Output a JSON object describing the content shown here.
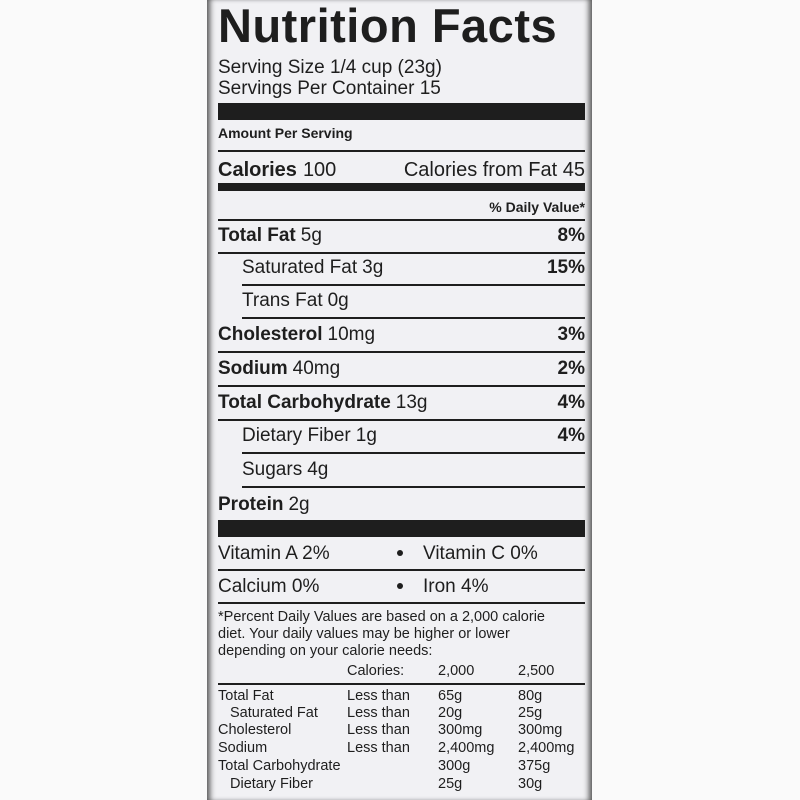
{
  "title": "Nutrition Facts",
  "serving_size": "Serving Size 1/4 cup (23g)",
  "servings_per_container": "Servings Per Container 15",
  "amount_per_serving": "Amount Per Serving",
  "calories": {
    "label": "Calories",
    "value": "100",
    "from_fat": "Calories from Fat 45"
  },
  "daily_value_header": "% Daily Value*",
  "nutrients": [
    {
      "name": "Total Fat",
      "amount": "5g",
      "dv": "8%"
    },
    {
      "name": "Saturated Fat",
      "amount": "3g",
      "dv": "15%"
    },
    {
      "name": "Trans Fat",
      "amount": "0g"
    },
    {
      "name": "Cholesterol",
      "amount": "10mg",
      "dv": "3%"
    },
    {
      "name": "Sodium",
      "amount": "40mg",
      "dv": "2%"
    },
    {
      "name": "Total Carbohydrate",
      "amount": "13g",
      "dv": "4%"
    },
    {
      "name": "Dietary Fiber",
      "amount": "1g",
      "dv": "4%"
    },
    {
      "name": "Sugars",
      "amount": "4g"
    },
    {
      "name": "Protein",
      "amount": "2g"
    }
  ],
  "vitamins": [
    [
      "Vitamin A 2%",
      "Vitamin C 0%"
    ],
    [
      "Calcium 0%",
      "Iron 4%"
    ]
  ],
  "footnote": [
    "*Percent Daily Values are based on a 2,000 calorie",
    "diet. Your daily values may be higher or lower",
    "depending on your calorie needs:"
  ],
  "reference_table": {
    "header": [
      "Calories:",
      "2,000",
      "2,500"
    ],
    "rows": [
      [
        "Total Fat",
        "Less than",
        "65g",
        "80g"
      ],
      [
        "Saturated Fat",
        "Less than",
        "20g",
        "25g"
      ],
      [
        "Cholesterol",
        "Less than",
        "300mg",
        "300mg"
      ],
      [
        "Sodium",
        "Less than",
        "2,400mg",
        "2,400mg"
      ],
      [
        "Total Carbohydrate",
        "300g",
        "375g"
      ],
      [
        "Dietary Fiber",
        "25g",
        "30g"
      ]
    ]
  }
}
